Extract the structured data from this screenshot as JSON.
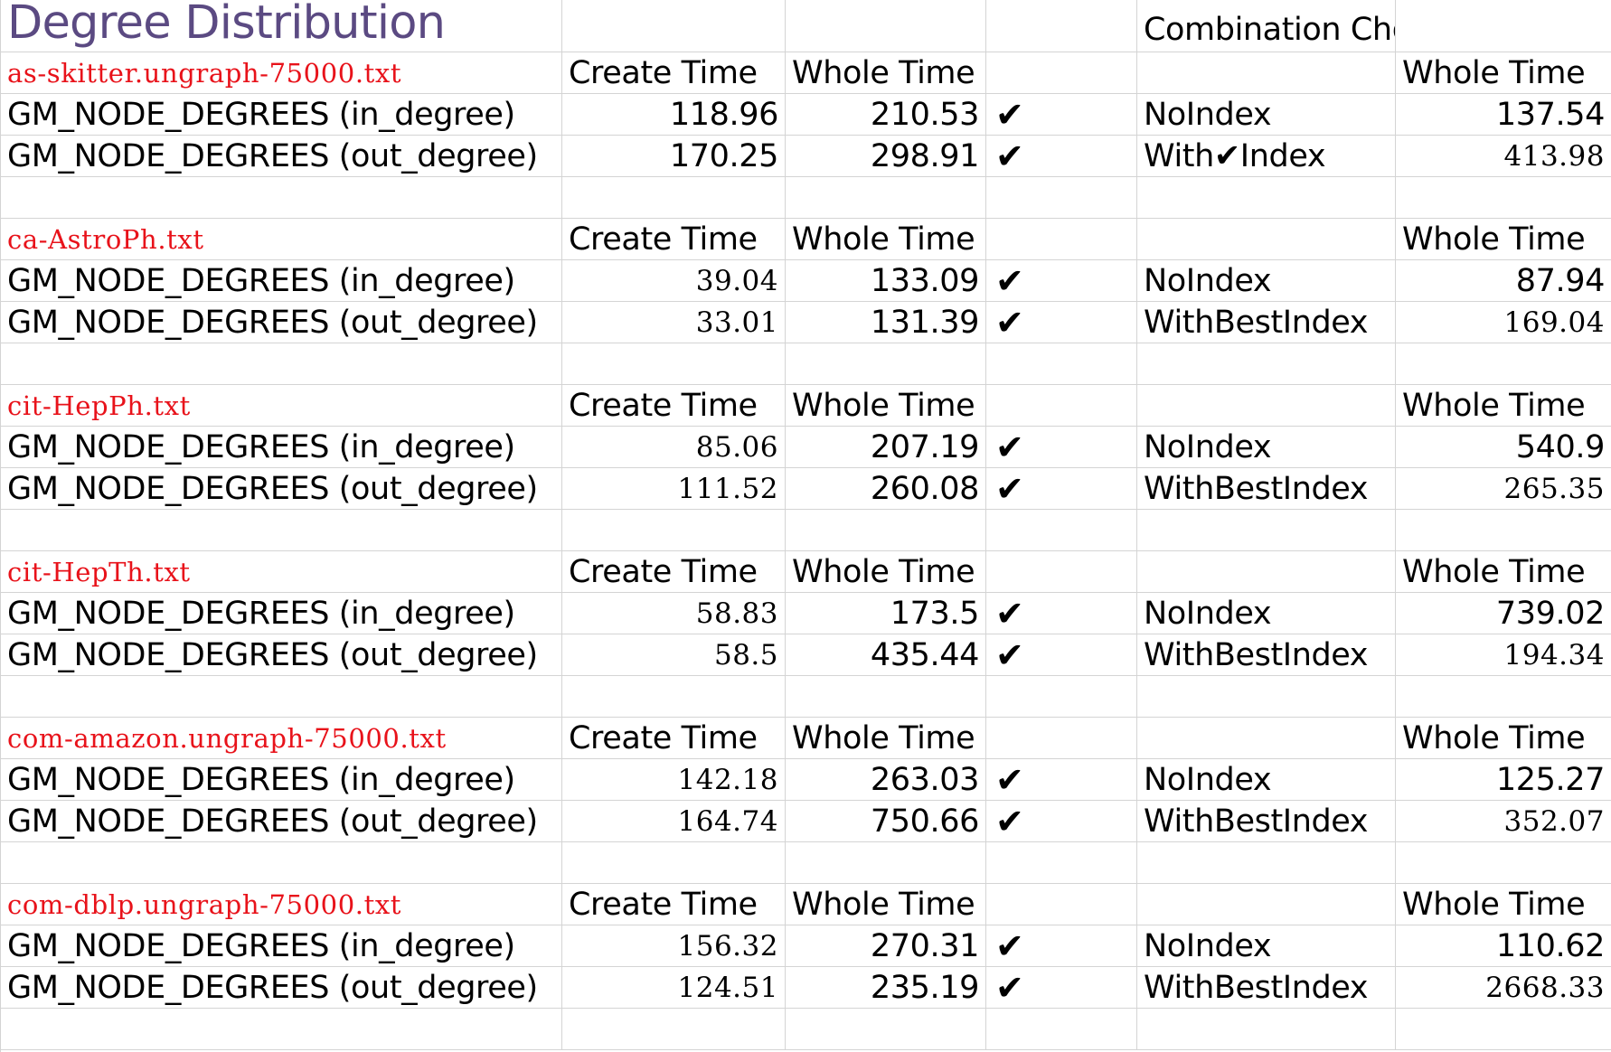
{
  "sheet": {
    "title": "Degree Distribution",
    "combination_header": "Combination Choice",
    "colors": {
      "title": "#5b4a82",
      "file_name": "#e8121a",
      "gridline": "#d4d4d4",
      "text": "#000000"
    },
    "blocks": [
      {
        "file": "as-skitter.ungraph-75000.txt",
        "create_header": "Create Time",
        "whole_header": "Whole Time",
        "combo_whole_header": "Whole Time",
        "rows": [
          {
            "label": "GM_NODE_DEGREES (in_degree)",
            "create": "118.96",
            "whole": "210.53",
            "check": "✔",
            "choice": "NoIndex",
            "choice_whole": "137.54"
          },
          {
            "label": "GM_NODE_DEGREES (out_degree)",
            "create": "170.25",
            "whole": "298.91",
            "check": "✔",
            "choice": "With✔Index",
            "choice_whole": "413.98"
          }
        ]
      },
      {
        "file": "ca-AstroPh.txt",
        "create_header": "Create Time",
        "whole_header": "Whole Time",
        "combo_whole_header": "Whole Time",
        "rows": [
          {
            "label": "GM_NODE_DEGREES (in_degree)",
            "create": "39.04",
            "whole": "133.09",
            "check": "✔",
            "choice": "NoIndex",
            "choice_whole": "87.94"
          },
          {
            "label": "GM_NODE_DEGREES (out_degree)",
            "create": "33.01",
            "whole": "131.39",
            "check": "✔",
            "choice": "WithBestIndex",
            "choice_whole": "169.04"
          }
        ]
      },
      {
        "file": "cit-HepPh.txt",
        "create_header": "Create Time",
        "whole_header": "Whole Time",
        "combo_whole_header": "Whole Time",
        "rows": [
          {
            "label": "GM_NODE_DEGREES (in_degree)",
            "create": "85.06",
            "whole": "207.19",
            "check": "✔",
            "choice": "NoIndex",
            "choice_whole": "540.9"
          },
          {
            "label": "GM_NODE_DEGREES (out_degree)",
            "create": "111.52",
            "whole": "260.08",
            "check": "✔",
            "choice": "WithBestIndex",
            "choice_whole": "265.35"
          }
        ]
      },
      {
        "file": "cit-HepTh.txt",
        "create_header": "Create Time",
        "whole_header": "Whole Time",
        "combo_whole_header": "Whole Time",
        "rows": [
          {
            "label": "GM_NODE_DEGREES (in_degree)",
            "create": "58.83",
            "whole": "173.5",
            "check": "✔",
            "choice": "NoIndex",
            "choice_whole": "739.02"
          },
          {
            "label": "GM_NODE_DEGREES (out_degree)",
            "create": "58.5",
            "whole": "435.44",
            "check": "✔",
            "choice": "WithBestIndex",
            "choice_whole": "194.34"
          }
        ]
      },
      {
        "file": "com-amazon.ungraph-75000.txt",
        "create_header": "Create Time",
        "whole_header": "Whole Time",
        "combo_whole_header": "Whole Time",
        "rows": [
          {
            "label": "GM_NODE_DEGREES (in_degree)",
            "create": "142.18",
            "whole": "263.03",
            "check": "✔",
            "choice": "NoIndex",
            "choice_whole": "125.27"
          },
          {
            "label": "GM_NODE_DEGREES (out_degree)",
            "create": "164.74",
            "whole": "750.66",
            "check": "✔",
            "choice": "WithBestIndex",
            "choice_whole": "352.07"
          }
        ]
      },
      {
        "file": "com-dblp.ungraph-75000.txt",
        "create_header": "Create Time",
        "whole_header": "Whole Time",
        "combo_whole_header": "Whole Time",
        "rows": [
          {
            "label": "GM_NODE_DEGREES (in_degree)",
            "create": "156.32",
            "whole": "270.31",
            "check": "✔",
            "choice": "NoIndex",
            "choice_whole": "110.62"
          },
          {
            "label": "GM_NODE_DEGREES (out_degree)",
            "create": "124.51",
            "whole": "235.19",
            "check": "✔",
            "choice": "WithBestIndex",
            "choice_whole": "2668.33"
          }
        ]
      }
    ]
  }
}
